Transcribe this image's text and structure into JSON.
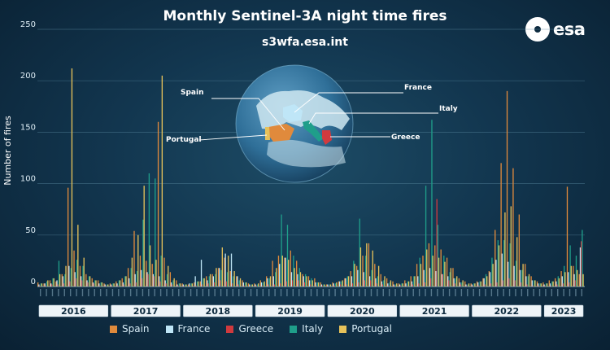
{
  "header": {
    "title": "Monthly Sentinel-3A night time fires",
    "subtitle": "s3wfa.esa.int",
    "logo_text": "esa"
  },
  "colors": {
    "Spain": "#e08a3c",
    "France": "#bfe6f7",
    "Greece": "#d03a3e",
    "Italy": "#1f9e8a",
    "Portugal": "#e6c25a"
  },
  "map_labels": {
    "spain": "Spain",
    "france": "France",
    "italy": "Italy",
    "greece": "Greece",
    "portugal": "Portugal"
  },
  "chart_data": {
    "type": "bar",
    "ylabel": "Number of fires",
    "ylim": [
      0,
      250
    ],
    "yticks": [
      0,
      50,
      100,
      150,
      200,
      250
    ],
    "grid": true,
    "legend_position": "bottom",
    "years": [
      "2016",
      "2017",
      "2018",
      "2019",
      "2020",
      "2021",
      "2022",
      "2023"
    ],
    "series": [
      {
        "name": "Spain",
        "values": [
          4,
          3,
          6,
          5,
          12,
          96,
          35,
          20,
          12,
          8,
          6,
          3,
          3,
          5,
          8,
          18,
          54,
          30,
          25,
          22,
          160,
          28,
          14,
          6,
          3,
          2,
          4,
          5,
          10,
          12,
          18,
          28,
          15,
          10,
          6,
          3,
          3,
          6,
          10,
          25,
          30,
          28,
          35,
          25,
          12,
          10,
          8,
          4,
          2,
          4,
          5,
          8,
          15,
          20,
          30,
          42,
          22,
          12,
          8,
          5,
          3,
          6,
          10,
          22,
          30,
          42,
          40,
          36,
          28,
          18,
          8,
          5,
          3,
          5,
          8,
          15,
          55,
          120,
          190,
          115,
          70,
          22,
          10,
          5,
          4,
          6,
          8,
          15,
          97,
          20,
          12
        ]
      },
      {
        "name": "France",
        "values": [
          2,
          3,
          3,
          6,
          10,
          20,
          14,
          10,
          6,
          4,
          3,
          2,
          2,
          3,
          4,
          8,
          12,
          16,
          14,
          12,
          10,
          6,
          4,
          2,
          2,
          3,
          10,
          26,
          6,
          10,
          18,
          32,
          32,
          10,
          4,
          2,
          2,
          4,
          8,
          10,
          22,
          28,
          14,
          12,
          10,
          6,
          4,
          2,
          2,
          3,
          5,
          8,
          10,
          16,
          14,
          10,
          8,
          5,
          3,
          2,
          2,
          3,
          5,
          10,
          16,
          18,
          15,
          12,
          10,
          8,
          4,
          2,
          2,
          4,
          8,
          14,
          26,
          32,
          24,
          20,
          16,
          10,
          6,
          3,
          2,
          3,
          5,
          10,
          14,
          12,
          38
        ]
      },
      {
        "name": "Greece",
        "values": [
          1,
          1,
          2,
          2,
          3,
          5,
          8,
          6,
          4,
          3,
          1,
          1,
          1,
          1,
          2,
          3,
          4,
          8,
          12,
          10,
          5,
          3,
          2,
          1,
          1,
          1,
          1,
          2,
          3,
          4,
          6,
          5,
          3,
          2,
          1,
          1,
          1,
          1,
          2,
          2,
          3,
          5,
          6,
          6,
          4,
          2,
          1,
          1,
          1,
          1,
          2,
          2,
          3,
          4,
          6,
          6,
          3,
          2,
          1,
          1,
          1,
          1,
          2,
          3,
          4,
          8,
          85,
          12,
          6,
          3,
          2,
          1,
          1,
          1,
          2,
          3,
          4,
          6,
          8,
          6,
          4,
          2,
          1,
          1,
          1,
          1,
          2,
          3,
          4,
          6,
          44
        ]
      },
      {
        "name": "Italy",
        "values": [
          3,
          5,
          8,
          25,
          12,
          18,
          26,
          20,
          10,
          6,
          4,
          2,
          3,
          6,
          10,
          18,
          15,
          65,
          110,
          105,
          30,
          12,
          6,
          3,
          2,
          3,
          5,
          8,
          10,
          12,
          16,
          14,
          10,
          6,
          4,
          2,
          2,
          4,
          8,
          14,
          70,
          60,
          30,
          18,
          12,
          8,
          4,
          2,
          2,
          3,
          5,
          10,
          25,
          66,
          30,
          16,
          10,
          6,
          4,
          2,
          3,
          5,
          10,
          28,
          98,
          162,
          60,
          30,
          14,
          8,
          4,
          2,
          3,
          5,
          12,
          28,
          45,
          45,
          42,
          25,
          16,
          10,
          6,
          3,
          3,
          5,
          10,
          20,
          40,
          30,
          55
        ]
      },
      {
        "name": "Portugal",
        "values": [
          3,
          6,
          8,
          12,
          20,
          212,
          60,
          28,
          10,
          6,
          4,
          2,
          3,
          6,
          10,
          28,
          50,
          98,
          40,
          26,
          205,
          20,
          8,
          3,
          2,
          3,
          5,
          8,
          12,
          18,
          38,
          30,
          15,
          8,
          4,
          2,
          3,
          5,
          10,
          18,
          30,
          26,
          18,
          14,
          10,
          6,
          4,
          2,
          2,
          4,
          6,
          10,
          22,
          38,
          42,
          35,
          20,
          10,
          6,
          3,
          3,
          5,
          10,
          22,
          36,
          30,
          28,
          24,
          18,
          10,
          6,
          3,
          3,
          5,
          10,
          22,
          40,
          72,
          78,
          48,
          22,
          12,
          6,
          3,
          3,
          5,
          8,
          14,
          20,
          16,
          12
        ]
      }
    ]
  }
}
